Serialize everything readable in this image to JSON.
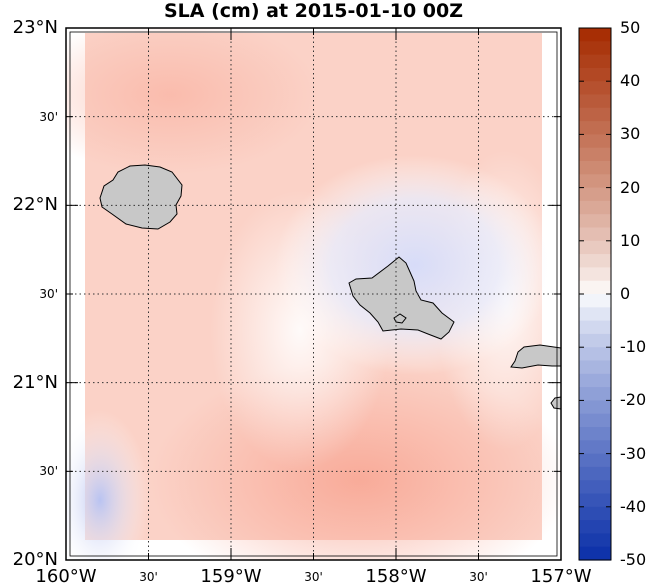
{
  "title": "SLA (cm) at 2015-01-10 00Z",
  "colors": {
    "land": "#c8c8c8",
    "coast": "#000000",
    "frame": "#000000",
    "grid": "#333333",
    "sla_positive_max": "#a52a00",
    "sla_zero": "#ffffff",
    "sla_negative_max": "#0a2fa8"
  },
  "map": {
    "projection": "equirectangular",
    "lon_range": [
      -160,
      -157
    ],
    "lat_range": [
      20,
      23
    ],
    "gridlines": "dotted",
    "lon_ticks": [
      {
        "lon": -160,
        "label": "160°W",
        "major": true
      },
      {
        "lon": -159.5,
        "label": "30'",
        "major": false
      },
      {
        "lon": -159,
        "label": "159°W",
        "major": true
      },
      {
        "lon": -158.5,
        "label": "30'",
        "major": false
      },
      {
        "lon": -158,
        "label": "158°W",
        "major": true
      },
      {
        "lon": -157.5,
        "label": "30'",
        "major": false
      },
      {
        "lon": -157,
        "label": "157°W",
        "major": true
      }
    ],
    "lat_ticks": [
      {
        "lat": 23,
        "label": "23°N",
        "major": true
      },
      {
        "lat": 22.5,
        "label": "30'",
        "major": false
      },
      {
        "lat": 22,
        "label": "22°N",
        "major": true
      },
      {
        "lat": 21.5,
        "label": "30'",
        "major": false
      },
      {
        "lat": 21,
        "label": "21°N",
        "major": true
      },
      {
        "lat": 20.5,
        "label": "30'",
        "major": false
      },
      {
        "lat": 20,
        "label": "20°N",
        "major": true
      }
    ]
  },
  "colorbar": {
    "min": -50,
    "max": 50,
    "orientation": "vertical",
    "position": "right",
    "tick_labels": [
      "50",
      "40",
      "30",
      "20",
      "10",
      "0",
      "-10",
      "-20",
      "-30",
      "-40",
      "-50"
    ]
  },
  "features": [
    {
      "name": "kauai-island",
      "lon": -159.53,
      "lat": 22.06
    },
    {
      "name": "oahu-island",
      "lon": -157.98,
      "lat": 21.47
    },
    {
      "name": "molokai-island",
      "lon": -157.02,
      "lat": 21.13
    }
  ]
}
